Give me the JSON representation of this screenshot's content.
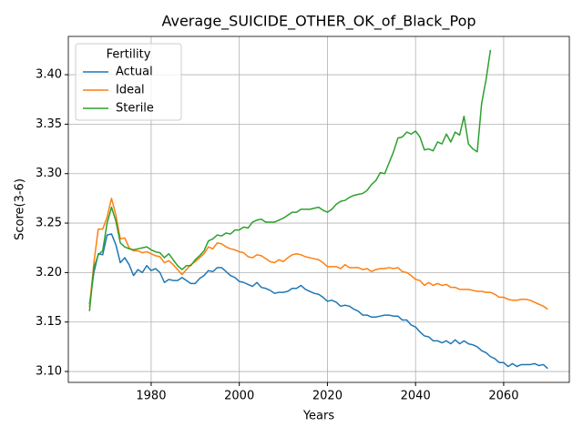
{
  "chart_data": {
    "type": "line",
    "title": "Average_SUICIDE_OTHER_OK_of_Black_Pop",
    "xlabel": "Years",
    "ylabel": "Score(3-6)",
    "legend_title": "Fertility",
    "legend": "upper left",
    "grid": true,
    "x": [
      1966,
      1967,
      1968,
      1969,
      1970,
      1971,
      1972,
      1973,
      1974,
      1975,
      1976,
      1977,
      1978,
      1979,
      1980,
      1981,
      1982,
      1983,
      1984,
      1985,
      1986,
      1987,
      1988,
      1989,
      1990,
      1991,
      1992,
      1993,
      1994,
      1995,
      1996,
      1997,
      1998,
      1999,
      2000,
      2001,
      2002,
      2003,
      2004,
      2005,
      2006,
      2007,
      2008,
      2009,
      2010,
      2011,
      2012,
      2013,
      2014,
      2015,
      2016,
      2017,
      2018,
      2019,
      2020,
      2021,
      2022,
      2023,
      2024,
      2025,
      2026,
      2027,
      2028,
      2029,
      2030,
      2031,
      2032,
      2033,
      2034,
      2035,
      2036,
      2037,
      2038,
      2039,
      2040,
      2041,
      2042,
      2043,
      2044,
      2045,
      2046,
      2047,
      2048,
      2049,
      2050,
      2051,
      2052,
      2053,
      2054,
      2055,
      2056,
      2057,
      2058,
      2059,
      2060,
      2061,
      2062,
      2063,
      2064,
      2065,
      2066,
      2067,
      2068,
      2069,
      2070
    ],
    "series": [
      {
        "name": "Actual",
        "color": "#1f77b4",
        "values": [
          3.168,
          3.2,
          3.219,
          3.218,
          3.238,
          3.239,
          3.228,
          3.21,
          3.215,
          3.208,
          3.197,
          3.203,
          3.2,
          3.207,
          3.202,
          3.204,
          3.2,
          3.19,
          3.193,
          3.192,
          3.192,
          3.195,
          3.192,
          3.189,
          3.189,
          3.194,
          3.197,
          3.202,
          3.201,
          3.205,
          3.205,
          3.201,
          3.197,
          3.195,
          3.191,
          3.19,
          3.188,
          3.186,
          3.19,
          3.185,
          3.184,
          3.182,
          3.179,
          3.18,
          3.18,
          3.181,
          3.184,
          3.184,
          3.187,
          3.183,
          3.181,
          3.179,
          3.178,
          3.175,
          3.171,
          3.172,
          3.17,
          3.166,
          3.167,
          3.166,
          3.163,
          3.161,
          3.157,
          3.157,
          3.155,
          3.155,
          3.156,
          3.157,
          3.157,
          3.156,
          3.156,
          3.152,
          3.152,
          3.147,
          3.145,
          3.14,
          3.136,
          3.135,
          3.131,
          3.131,
          3.129,
          3.131,
          3.128,
          3.132,
          3.128,
          3.131,
          3.128,
          3.127,
          3.125,
          3.121,
          3.119,
          3.115,
          3.113,
          3.109,
          3.109,
          3.105,
          3.108,
          3.105,
          3.107,
          3.107,
          3.107,
          3.108,
          3.106,
          3.107,
          3.103
        ]
      },
      {
        "name": "Ideal",
        "color": "#ff7f0e",
        "values": [
          3.165,
          3.21,
          3.244,
          3.244,
          3.256,
          3.275,
          3.258,
          3.234,
          3.235,
          3.225,
          3.222,
          3.222,
          3.22,
          3.221,
          3.219,
          3.217,
          3.216,
          3.21,
          3.212,
          3.208,
          3.203,
          3.198,
          3.203,
          3.208,
          3.211,
          3.215,
          3.219,
          3.226,
          3.224,
          3.23,
          3.229,
          3.226,
          3.224,
          3.223,
          3.221,
          3.22,
          3.216,
          3.215,
          3.218,
          3.217,
          3.214,
          3.211,
          3.21,
          3.213,
          3.211,
          3.215,
          3.218,
          3.219,
          3.218,
          3.216,
          3.215,
          3.214,
          3.213,
          3.21,
          3.206,
          3.206,
          3.206,
          3.204,
          3.208,
          3.205,
          3.205,
          3.205,
          3.203,
          3.204,
          3.201,
          3.203,
          3.204,
          3.204,
          3.205,
          3.204,
          3.205,
          3.201,
          3.2,
          3.197,
          3.193,
          3.192,
          3.187,
          3.19,
          3.187,
          3.189,
          3.187,
          3.188,
          3.185,
          3.185,
          3.183,
          3.183,
          3.183,
          3.182,
          3.181,
          3.181,
          3.18,
          3.18,
          3.178,
          3.175,
          3.175,
          3.173,
          3.172,
          3.172,
          3.173,
          3.173,
          3.172,
          3.17,
          3.168,
          3.166,
          3.163
        ]
      },
      {
        "name": "Sterile",
        "color": "#2ca02c",
        "values": [
          3.161,
          3.205,
          3.218,
          3.222,
          3.25,
          3.266,
          3.252,
          3.23,
          3.226,
          3.224,
          3.223,
          3.224,
          3.225,
          3.226,
          3.223,
          3.221,
          3.22,
          3.215,
          3.219,
          3.213,
          3.207,
          3.203,
          3.207,
          3.207,
          3.213,
          3.217,
          3.222,
          3.232,
          3.234,
          3.238,
          3.237,
          3.24,
          3.239,
          3.243,
          3.243,
          3.246,
          3.245,
          3.251,
          3.253,
          3.254,
          3.251,
          3.251,
          3.251,
          3.253,
          3.255,
          3.258,
          3.261,
          3.261,
          3.264,
          3.264,
          3.264,
          3.265,
          3.266,
          3.263,
          3.261,
          3.264,
          3.269,
          3.272,
          3.273,
          3.276,
          3.278,
          3.279,
          3.28,
          3.283,
          3.289,
          3.293,
          3.301,
          3.3,
          3.311,
          3.322,
          3.336,
          3.337,
          3.342,
          3.34,
          3.343,
          3.337,
          3.324,
          3.325,
          3.323,
          3.332,
          3.33,
          3.34,
          3.332,
          3.342,
          3.339,
          3.358,
          3.33,
          3.325,
          3.322,
          3.371,
          3.395,
          3.425,
          null,
          null,
          null,
          null,
          null,
          null,
          null,
          null,
          null,
          null,
          null,
          null,
          null
        ]
      }
    ],
    "xlim": [
      1961.2,
      2074.9
    ],
    "xticks": [
      1980,
      2000,
      2020,
      2040,
      2060
    ],
    "ylim": [
      3.089,
      3.4387
    ],
    "yticks": [
      {
        "value": 3.1,
        "label": "3.10"
      },
      {
        "value": 3.15,
        "label": "3.15"
      },
      {
        "value": 3.2,
        "label": "3.20"
      },
      {
        "value": 3.25,
        "label": "3.25"
      },
      {
        "value": 3.3,
        "label": "3.30"
      },
      {
        "value": 3.35,
        "label": "3.35"
      },
      {
        "value": 3.4,
        "label": "3.40"
      }
    ]
  }
}
